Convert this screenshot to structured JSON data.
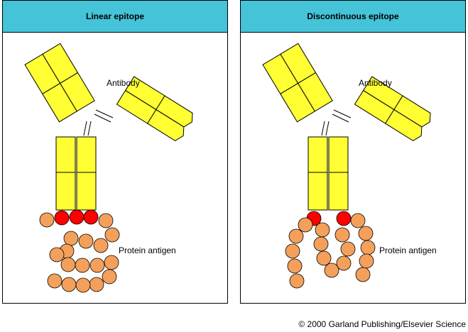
{
  "panels": [
    {
      "title": "Linear epitope",
      "antibody_label": "Antibody",
      "antigen_label": "Protein antigen"
    },
    {
      "title": "Discontinuous epitope",
      "antibody_label": "Antibody",
      "antigen_label": "Protein antigen"
    }
  ],
  "colors": {
    "header": "#45c3d8",
    "antibody": "#ffff33",
    "antigen_residue": "#f4a05a",
    "epitope_residue": "#ff0000"
  },
  "copyright": "© 2000 Garland Publishing/Elsevier Science"
}
